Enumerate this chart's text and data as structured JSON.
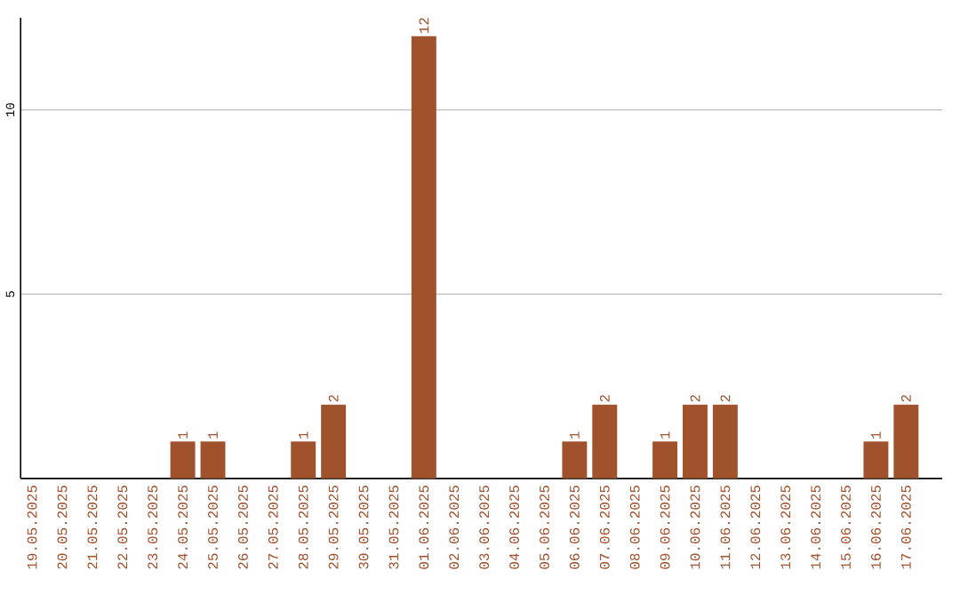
{
  "chart_data": {
    "type": "bar",
    "categories": [
      "19.05.2025",
      "20.05.2025",
      "21.05.2025",
      "22.05.2025",
      "23.05.2025",
      "24.05.2025",
      "25.05.2025",
      "26.05.2025",
      "27.05.2025",
      "28.05.2025",
      "29.05.2025",
      "30.05.2025",
      "31.05.2025",
      "01.06.2025",
      "02.06.2025",
      "03.06.2025",
      "04.06.2025",
      "05.06.2025",
      "06.06.2025",
      "07.06.2025",
      "08.06.2025",
      "09.06.2025",
      "10.06.2025",
      "11.06.2025",
      "12.06.2025",
      "13.06.2025",
      "14.06.2025",
      "15.06.2025",
      "16.06.2025",
      "17.06.2025"
    ],
    "values": [
      0,
      0,
      0,
      0,
      0,
      1,
      1,
      0,
      0,
      1,
      2,
      0,
      0,
      12,
      0,
      0,
      0,
      0,
      1,
      2,
      0,
      1,
      2,
      2,
      0,
      0,
      0,
      0,
      1,
      2
    ],
    "value_labels": [
      null,
      null,
      null,
      null,
      null,
      "1",
      "1",
      null,
      null,
      "1",
      "2",
      null,
      null,
      "12",
      null,
      null,
      null,
      null,
      "1",
      "2",
      null,
      "1",
      "2",
      "2",
      null,
      null,
      null,
      null,
      "1",
      "2"
    ],
    "color": "#a0522d",
    "ylim": [
      0,
      12.5
    ],
    "yticks": [
      5,
      10
    ],
    "grid": "y"
  }
}
